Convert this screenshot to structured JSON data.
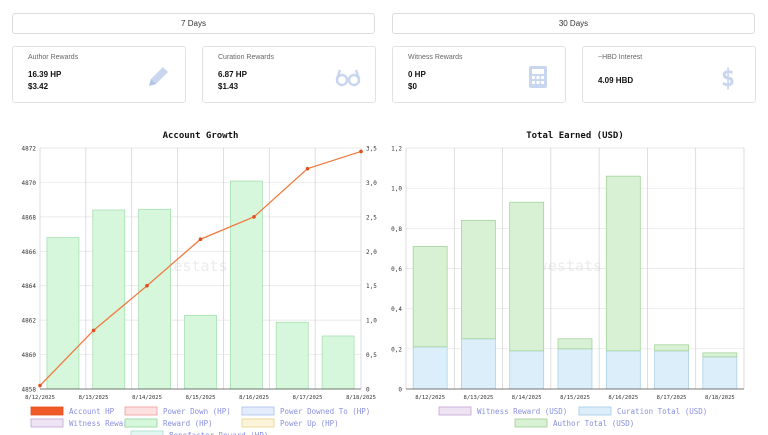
{
  "period_buttons": {
    "seven_days": "7 Days",
    "thirty_days": "30 Days"
  },
  "cards": {
    "author": {
      "label": "Author Rewards",
      "hp": "16.39 HP",
      "usd": "$3.42"
    },
    "curation": {
      "label": "Curation Rewards",
      "hp": "6.87 HP",
      "usd": "$1.43"
    },
    "witness": {
      "label": "Witness Rewards",
      "hp": "0 HP",
      "usd": "$0"
    },
    "interest": {
      "label": "~HBD Interest",
      "value": "4.09 HBD"
    }
  },
  "colors": {
    "icon": "#c9d6f0",
    "author_hp": "#f05a28",
    "reward_bar": "#d6f7dc",
    "curation": "#dceefa",
    "author_usd": "#d8f0d4"
  },
  "chart_data": [
    {
      "type": "bar+line",
      "title": "Account Growth",
      "watermark": "hivestats.io",
      "categories": [
        "8/12/2025",
        "8/13/2025",
        "8/14/2025",
        "8/15/2025",
        "8/16/2025",
        "8/17/2025",
        "8/18/2025"
      ],
      "y_left": {
        "min": 4858,
        "max": 4872,
        "ticks": [
          "4872",
          "4870",
          "4868",
          "4866",
          "4864",
          "4862",
          "4860",
          "4858"
        ]
      },
      "y_right": {
        "min": 0,
        "max": 3.5,
        "ticks": [
          "3,5",
          "3,0",
          "2,5",
          "2,0",
          "1,5",
          "1,0",
          "0,5",
          "0"
        ]
      },
      "series": [
        {
          "name": "Account HP",
          "type": "line",
          "axis": "left",
          "values": [
            4858.2,
            4861.4,
            4864.0,
            4866.7,
            4868.0,
            4870.8,
            4871.8
          ]
        },
        {
          "name": "Reward (HP)",
          "type": "bar",
          "axis": "right",
          "values": [
            2.2,
            2.6,
            2.61,
            1.07,
            3.02,
            0.97,
            0.77
          ]
        }
      ],
      "legend": [
        {
          "label": "Account HP",
          "color": "#f05a28",
          "border": "#e0501e"
        },
        {
          "label": "Power Down (HP)",
          "color": "#fde0e0",
          "border": "#f29a9a"
        },
        {
          "label": "Power Downed To (HP)",
          "color": "#e3ecfb",
          "border": "#a9c0ef"
        },
        {
          "label": "Witness Reward (HP)",
          "color": "#eee3f3",
          "border": "#c4a4d6"
        },
        {
          "label": "Reward (HP)",
          "color": "#d6f7dc",
          "border": "#8fd69c"
        },
        {
          "label": "Power Up (HP)",
          "color": "#fbf4da",
          "border": "#e6d18a"
        },
        {
          "label": "Benefactor Reward (HP)",
          "color": "#e2f7f1",
          "border": "#a6dfcf"
        }
      ]
    },
    {
      "type": "stacked-bar",
      "title": "Total Earned (USD)",
      "watermark": "hivestats.io",
      "categories": [
        "8/12/2025",
        "8/13/2025",
        "8/14/2025",
        "8/15/2025",
        "8/16/2025",
        "8/17/2025",
        "8/18/2025"
      ],
      "y": {
        "min": 0,
        "max": 1.2,
        "ticks": [
          "1,2",
          "1,0",
          "0,8",
          "0,6",
          "0,4",
          "0,2",
          "0"
        ]
      },
      "series": [
        {
          "name": "Witness Reward (USD)",
          "values": [
            0,
            0,
            0,
            0,
            0,
            0,
            0
          ]
        },
        {
          "name": "Curation Total (USD)",
          "values": [
            0.21,
            0.25,
            0.19,
            0.2,
            0.19,
            0.19,
            0.16
          ]
        },
        {
          "name": "Author Total (USD)",
          "values": [
            0.5,
            0.59,
            0.74,
            0.05,
            0.87,
            0.03,
            0.02
          ]
        }
      ],
      "legend": [
        {
          "label": "Witness Reward (USD)",
          "color": "#eee3f3",
          "border": "#c4a4d6"
        },
        {
          "label": "Curation Total (USD)",
          "color": "#dceefa",
          "border": "#a3cce6"
        },
        {
          "label": "Author Total (USD)",
          "color": "#d8f0d4",
          "border": "#9ccf92"
        }
      ]
    }
  ]
}
